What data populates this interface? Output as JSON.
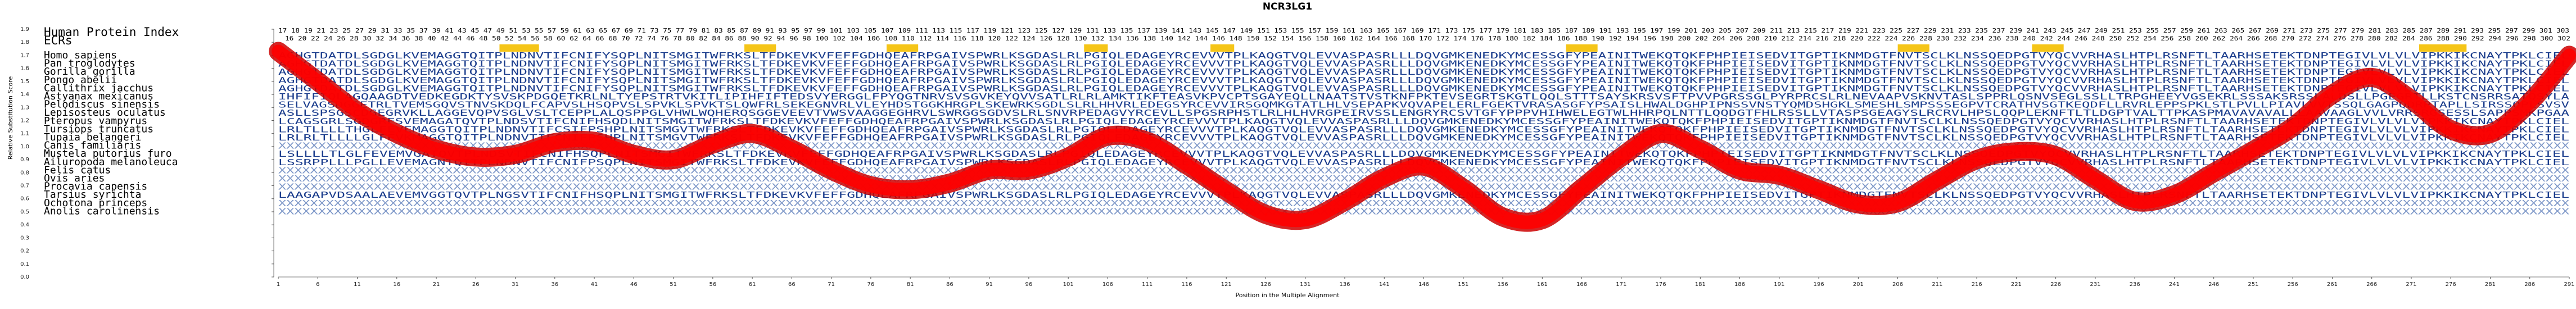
{
  "chart_data": {
    "type": "line",
    "title": "NCR3LG1",
    "xlabel": "Position in the Multiple Alignment",
    "ylabel": "Relative Substitution Score",
    "xlim": [
      1,
      291
    ],
    "ylim": [
      0.0,
      1.9
    ],
    "x_ticks": [
      1,
      6,
      11,
      16,
      21,
      26,
      31,
      36,
      41,
      46,
      51,
      56,
      61,
      66,
      71,
      76,
      81,
      86,
      91,
      96,
      101,
      106,
      111,
      116,
      121,
      126,
      131,
      136,
      141,
      146,
      151,
      156,
      161,
      166,
      171,
      176,
      181,
      186,
      191,
      196,
      201,
      206,
      211,
      216,
      221,
      226,
      231,
      236,
      241,
      246,
      251,
      256,
      261,
      266,
      271,
      276,
      281,
      286,
      291
    ],
    "y_ticks": [
      0.0,
      0.1,
      0.2,
      0.3,
      0.4,
      0.5,
      0.6,
      0.7,
      0.8,
      0.9,
      1.0,
      1.1,
      1.2,
      1.3,
      1.4,
      1.5,
      1.6,
      1.7,
      1.8,
      1.9
    ],
    "row_labels": [
      "Human Protein Index",
      "ECRs",
      "Homo sapiens",
      "Pan troglodytes",
      "Gorilla gorilla",
      "Pongo abelii",
      "Callithrix jacchus",
      "Astyanax mexicanus",
      "Pelodiscus sinensis",
      "Lepisosteus oculatus",
      "Pteropus vampyrus",
      "Tursiops truncatus",
      "Tupaia belangeri",
      "Canis familiaris",
      "Mustela putorius furo",
      "Ailuropoda melanoleuca",
      "Felis catus",
      "Ovis aries",
      "Procavia capensis",
      "Tarsius syrichta",
      "Ochotona princeps",
      "Anolis carolinensis"
    ],
    "ecr_regions": [
      [
        29,
        34
      ],
      [
        60,
        64
      ],
      [
        78,
        82
      ],
      [
        103,
        106
      ],
      [
        119,
        122
      ],
      [
        164,
        168
      ],
      [
        206,
        210
      ],
      [
        223,
        227
      ],
      [
        272,
        278
      ]
    ],
    "series": [
      {
        "color": "#ff0000",
        "edge_color": "#cc0000",
        "x": [
          1,
          6,
          11,
          16,
          21,
          26,
          31,
          36,
          41,
          46,
          51,
          56,
          61,
          66,
          71,
          76,
          81,
          86,
          91,
          96,
          101,
          106,
          111,
          116,
          121,
          126,
          131,
          136,
          141,
          146,
          151,
          156,
          161,
          166,
          171,
          176,
          181,
          186,
          191,
          196,
          201,
          206,
          211,
          216,
          221,
          226,
          231,
          236,
          241,
          246,
          251,
          256,
          261,
          266,
          271,
          276,
          281,
          286,
          291
        ],
        "y": [
          1.73,
          1.5,
          1.27,
          1.1,
          0.98,
          0.92,
          0.94,
          1.03,
          1.04,
          0.94,
          0.9,
          1.02,
          1.1,
          0.98,
          0.82,
          0.7,
          0.67,
          0.72,
          0.82,
          0.82,
          0.92,
          1.08,
          1.04,
          0.86,
          0.66,
          0.48,
          0.44,
          0.58,
          0.76,
          0.85,
          0.68,
          0.46,
          0.44,
          0.68,
          0.92,
          1.1,
          0.98,
          0.82,
          0.78,
          0.67,
          0.56,
          0.57,
          0.74,
          0.9,
          0.96,
          0.93,
          0.75,
          0.58,
          0.63,
          0.8,
          0.97,
          1.15,
          1.4,
          1.53,
          1.36,
          1.13,
          1.1,
          1.34,
          1.7
        ]
      }
    ]
  },
  "alignment": {
    "index_numbers": "17 18 19 21 23 25 27 29 31 33 35 37 39 41 43 45 47 49 51 53 55 57 59 61 63 65 67 69 71 73 75 77 79 81 83 85 87 89 91 93 95 97 99 101 103 105 107 109 111 113 115 117 119 121 123 125 127 129 131 133 135 137 139 141 143 145 147 149 151 153 155 157 159 161 163 165 167 169 171 173 175 177 179 181 183 185 187 189 191 193 195 197 199 201 203 205 207 209 211 213 215 217 219 221 223 225 227 229 231 233 235 237 239 241 243 245 247 249 251 253 255 257 259 261 263 265 267 269 271 273 275 277 279 281 283 285 287 289 291 293 295 297 299 301 303",
    "index_numbers_2": "16 20 22 24 26 28 30 32 34 36 38 40 42 44 46 48 50 52 54 56 58 60 62 64 66 68 70 72 74 76 78 80 82 84 86 88 90 92 94 96 98 100 102 104 106 108 110 112 114 116 118 120 122 124 126 128 130 132 134 136 138 140 142 144 146 148 150 152 154 156 158 160 162 164 166 168 170 172 174 176 178 180 182 184 186 188 190 192 194 196 198 200 202 204 206 208 210 212 214 216 218 220 222 224 226 228 230 232 234 236 238 240 242 244 246 248 250 252 254 256 258 260 262 264 266 268 270 272 274 276 278 280 282 284 286 288 290 292 294 296 298 300 302",
    "sequences": [
      "AGHGTDATDLSGDGLKVEMAGGTQITPLNDNVTIFCNIFYSQPLNITSMGITWFRKSLTFDKEVKVFEFFGDHQEAFRPGAIVSPWRLKSGDASLRLPGIQLEDAGEYRCEVVVTPLKAQGTVQLEVVASPASRLLLDQVGMKENEDKYMCESSGFYPEAINITWEKQTQKFPHPIEISEDVITGPTIKNMDGTFNVTSCLKLNSSQEDPGTVYQCVVRHASLHTPLRSNFTLTAARHSETEKTDNPTEGIVLVLVLVIPKKIKCNAYTPKLCIEL",
      "AGHGTDATDLSGDGLKVEMAGGTQITPLNDNVTIFCNIFYSQPLNITSMGITWFRKSLTFDKEVKVFEFFGDHQEAFRPGAIVSPWRLKSGDASLRLPGIQLEDAGEYRCEVVVTPLKAQGTVQLEVVASPASRLLLDQVGMKENEDKYMCESSGFYPEAINITWEKQTQKFPHPIEISEDVITGPTIKNMDGTFNVTSCLKLNSSQEDPGTVYQCVVRHASLHTPLRSNFTLTAARHSETEKTDNPTEGIVLVLVLVIPKKIKCNAYTPKLCIEL",
      "AGHGTDATDLSGDGLKVEMAGGTQITPLNDNVTIFCNIFYSQPLNITSMGITWFRKSLTFDKEVKVFEFFGDHQEAFRPGAIVSPWRLKSGDASLRLPGIQLEDAGEYRCEVVVTPLKAQGTVQLEVVASPASRLLLDQVGMKENEDKYMCESSGFYPEAINITWEKQTQKFPHPIEISEDVITGPTIKNMDGTFNVTSCLKLNSSQEDPGTVYQCVVRHASLHTPLRSNFTLTAARHSETEKTDNPTEGIVLVLVLVIPKKIKCNAYTPKLCIEL",
      "AGHGTDATDLSGDGLKVEMAGGTQITPLNDNVTIFCNIFYSQPLNITSMGITWFRKSLTFDKEVKVFEFFGDHQEAFRPGAIVSPWRLKSGDASLRLPGIQLEDAGEYRCEVVVTPLKAQGTVQLEVVASPASRLLLDQVGMKENEDKYMCESSGFYPEAINITWEKQTQKFPHPIEISEDVITGPTIKNMDGTFNVTSCLKLNSSQEDPGTVYQCVVRHASLHTPLRSNFTLTAARHSETEKTDNPTEGIVLVLVLVIPKKIKCNAYTPKLCIEL",
      "AGHGTDATDLSGDGLKVEMAGGTQITPLNDNVTIFCNIFYSQPLNITSMGITWFRKSLTFDKEVKVFEFFGDHQEAFRPGAIVSPWRLKSGDASLRLPGIQLEDAGEYRCEVVVTPLKAQGTVQLEVVASPASRLLLDQVGMKENEDKYMCESSGFYPEAINITWEKQTQKFPHPIEISEDVITGPTIKNMDGTFNVTSCLKLNSSQEDPGTVYQCVVRHASLHTPLRSNFTLTAARHSETEKTDNPTEGIVLVLVLVIPKKIKCNAYTPKLCIEL",
      "IHFIFIQLAGQAAGDTVEDKEGDKTYSVSKPDGQETKRLNLTYEPSTRTVKITLIPIHFIFTEDSVYERGGLFPYQGTNRVSVSGVKEYQVVSATLRLRLAMKTIKFTEASVKPVCPTSGAYEQLLNAATSTVSTKNFPKTEVSEGRTSKGTLQQLSTTTSAYSKRSVSFTPVVPGRSSGLPYRPRCSLRLNEVAAPVSKNVTASLSPPRLQSNVSEGLSSLLTRPGHEEYVGSEKRLSSSAKSRSSLALDSLLPGEGRTLLKSTCNSRRSATQSYLA",
      "SELVAGSDGGETRLTVEMSGQVSTNVSKDQLFCAPVSLHSQPVSLSPVKLSPVKTSLQWFRLSEKEGNVRLVLEYHDSTGGKHRGPLSKEWRKSGDLSLRLHHVRLEDEGSYRCEVVIRSGQMKGTATLHLVSEPAPKVQVAPELERLFGEKTVRASASGFYPSAISLHWALDGHPIPNSSVNSTYQMDSHGKLSMESHLSMPSSSEGPVTCRATHVSGTKEQDFLLRVRLEPPSPKLSTLPVLLPIAVLVVTSSQLGAGPQDRPTAPLLSIRSSQPLSVSV",
      "ASLLSPSGSCDGEGRVKLLAGGEVQPVSGLVSLTCEPPLALQSPPGLVHWLWQHERQSGGEVEEVTVWSVAAGGEGHRVLSWRGGSGDVSLRLSNVRPEDAGVYRCEVLLSPGSRPHSTLRLHLHVRGPEIRVSSLENGRYRCSVTGFYPPPVHIHWELEGTWLHHRPQLNTTLQQDGTFHLRSSLLVTASPSGEAGYSLRCRVLHPSLQQPLEKNFTLTLDGPTVALTTPKASPMAVAVAVALLLAAVAAGLVVLVRRSRGSESSLSAPPSMKPGAA",
      "LCAGSGRLSGDGRFSVEMAGATQVTPLNDSVTIFCNIFHSQDLNITSMGITWFRKSLTFDKEVKVFEFFGDHQEAFRPGAIVSPWRLKSGDASLRLPGIQLEDAGEYRCEVVVTPLKAQGTVQLEVVASPASRLLLDQVGMKENEDKYMCESSGFYPEAINITWEKQTQKFPHPIEISEDVITGPTIKNMDGTFNVTSCLKLNSSQEDPGTVYQCVVRHASLHTPLRSNFTLTAARHSETEKTDNPTEGIVLVLVLVIPKKIKCNAYTPKLCIEL",
      "LRLTLLLLTHGLFEVEMAGGTQITPLNDNVTIFCSIFPSHPLNITSMGVTWFRKSLTFDKEVKVFEFFGDHQEAFRPGAIVSPWRLKSGDASLRLPGIQLEDAGEYRCEVVVTPLKAQGTVQLEVVASPASRLLLDQVGMKENEDKYMCESSGFYPEAINITWEKQTQKFPHPIEISEDVITGPTIKNMDGTFNVTSCLKLNSSQEDPGTVYQCVVRHASLHTPLRSNFTLTAARHSETEKTDNPTEGIVLVLVLVIPKKIKCNAYTPKLCIEL",
      "LRLRLTLLLLGLFEVKMAGGTQITPLNDNVTIFCNIFPSHPLNITSMGVTWFRKSLTFDKEVKVFEFFGDHQEAFRPGAIVSPWRLKSGDASLRLPGIQLEDAGEYRCEVVVTPLKAQGTVQLEVVASPASRLLLDQVGMKENEDKYMCESSGFYPEAINITWEKQTQKFPHPIEISEDVITGPTIKNMDGTFNVTSCLKLNSSQEDPGTVYQCVVRHASLHTPLRSNFTLTAARHSETEKTDNPTEGIVLVLVLVIPKKIKCNAYTPKLCIEL",
      "XXXXXXXXXXXXXXXXXXXXXXXXXXXXXXXXXXXXXXXXXXXXXXXXXXXXXXXXXXXXXXXXXXXXXXXXXXXXXXXXXXXXXXXXXXXXXXXXXXXXXXXXXXXXXXXXXXXXXXXXXXXXXXXXXXXXXXXXXXXXXXXXXXXXXXXXXXXXXXXXXXXXXXXXXXXXXXXXXXXXXXXXXXXXXXXXXXXXXXXXXXXXXXXXXXXXXXXXXXXXXXXXXXXXXXXXXXXXXXXXXXXXXXXXXXXXXXXXXXXXXXXXXXXXXXXXXXXXXXXXXXXXXXXX",
      "LSLLLLTLGLFEVEMVGATQVTPLNDSVTIFCNIFHSQPLNITSMGITWFRKSLTFDKEVKVFEFFGDHQEAFRPGAIVSPWRLKSGDASLRLPGIQLEDAGEYRCEVVVTPLKAQGTVQLEVVASPASRLLLDQVGMKENEDKYMCESSGFYPEAINITWEKQTQKFPHPIEISEDVITGPTIKNMDGTFNVTSCLKLNSSQEDPGTVYQCVVRHASLHTPLRSNFTLTAARHSETEKTDNPTEGIVLVLVLVIPKKIKCNAYTPKLCIEL",
      "LSSRPPLLLPGLLEVEMAGNTQITPLNDNVTIFCNIFPSQPLNITSMGITWFRKSLTFDKEVKVFEFFGDHQEAFRPGAIVSPWRLKSGDASLRLPGIQLEDAGEYRCEVVVTPLKAQGTVQLEVVASPASRLLLDQVGMKENEDKYMCESSGFYPEAINITWEKQTQKFPHPIEISEDVITGPTIKNMDGTFNVTSCLKLNSSQEDPGTVYQCVVRHASLHTPLRSNFTLTAARHSETEKTDNPTEGIVLVLVLVIPKKIKCNAYTPKLCIEL",
      "XXXXXXXXXXXXXXXXXXXXXXXXXXXXXXXXXXXXXXXXXXXXXXXXXXXXXXXXXXXXXXXXXXXXXXXXXXXXXXXXXXXXXXXXXXXXXXXXXXXXXXXXXXXXXXXXXXXXXXXXXXXXXXXXXXXXXXXXXXXXXXXXXXXXXXXXXXXXXXXXXXXXXXXXXXXXXXXXXXXXXXXXXXXXXXXXXXXXXXXXXXXXXXXXXXXXXXXXXXXXXXXXXXXXXXXXXXXXXXXXXXXXXXXXXXXXXXXXXXXXXXXXXXXXXXXXXXXXXXXXXXXXXXXXX",
      "XXXXXXXXXXXXXXXXXXXXXXXXXXXXXXXXXXXXXXXXXXXXXXXXXXXXXXXXXXXXXXXXXXXXXXXXXXXXXXXXXXXXXXXXXXXXXXXXXXXXXXXXXXXXXXXXXXXXXXXXXXXXXXXXXXXXXXXXXXXXXXXXXXXXXXXXXXXXXXXXXXXXXXXXXXXXXXXXXXXXXXXXXXXXXXXXXXXXXXXXXXXXXXXXXXXXXXXXXXXXXXXXXXXXXXXXXXXXXXXXXXXXXXXXXXXXXXXXXXXXXXXXXXXXXXXXXXXXXXXXXXXXXXXXX",
      "XXXXXXXXXXXXXXXXXXXXXXXXXXXXXXXXXXXXXXXXXXXXXXXXXXXXXXXXXXXXXXXXXXXXXXXXXXXXXXXXXXXXXXXXXXXXXXXXXXXXXXXXXXXXXXXXXXXXXXXXXXXXXXXXXXXXXXXXXXXXXXXXXXXXXXXXXXXXXXXXXXXXXXXXXXXXXXXXXXXXXXXXXXXXXXXXXXXXXXXXXXXXXXXXXXXXXXXXXXXXXXXXXXXXXXXXXXXXXXXXXXXXXXXXXXXXXXXXXXXXXXXXXXXXXXXXXXXXXXXXXXXXXXXX",
      "LAAGAPVDSAALAEVEMVGGTQVTPLNGSVTIFCNIFHSQPLNITSMGITWFRKSLTFDKEVKVFEFFGDHQEAFRPGAIVSPWRLKSGDASLRLPGIQLEDAGEYRCEVVVTPLKAQGTVQLEVVASPASRLLLDQVGMKENEDKYMCESSGFYPEAINITWEKQTQKFPHPIEISEDVITGPTIKNMDGTFNVTSCLKLNSSQEDPGTVYQCVVRHASLHTPLRSNFTLTAARHSETEKTDNPTEGIVLVLVLVIPKKIKCNAYTPKLCIEL",
      "XXXXXXXXXXXXXXXXXXXXXXXXXXXXXXXXXXXXXXXXXXXXXXXXXXXXXXXXXXXXXXXXXXXXXXXXXXXXXXXXXXXXXXXXXXXXXXXXXXXXXXXXXXXXXXXXXXXXXXXXXXXXXXXXXXXXXXXXXXXXXXXXXXXXXXXXXXXXXXXXXXXXXXXXXXXXXXXXXXXXXXXXXXXXXXXXXXXXXXXXXXXXXXXXXXXXXXXXXXXXXXXXXXXXXXXXXXXXXXXXXXXXXXXXXXXXXXXXXXXXXXXXXXXXXXXXXXXXXXXXXXXXXXXXX",
      "XXXXXXXXXXXXXXXXXXXXXXXXXXXXXXXXXXXXXXXXXXXXXXXXXXXXXXXXXXXXXXXXXXXXXXXXXXXXXXXXXXXXXXXXXXXXXXXXXXXXXXXXXXXXXXXXXXXXXXXXXXXXXXXXXXXXXXXXXXXXXXXXXXXXXXXXXXXXXXXXXXXXXXXXXXXXXXXXXXXXXXXXXXXXXXXXXXXXXXXXXXXXXXXXXXXXXXXXXXXXXXXXXXXXXXXXXXXXXXXXXXXXXXXXXXXXXXXXXXXXXXXXXXXXXXXXXXXXXXXXXXXXXXXX"
    ],
    "colors": {
      "ecr_fill": "#f5c518",
      "curve_fill": "#ff0000",
      "curve_edge": "#b00000",
      "sequence_blue": "#1a3c8c",
      "sequence_light": "#7d97c8",
      "axis_text": "#222222"
    }
  }
}
